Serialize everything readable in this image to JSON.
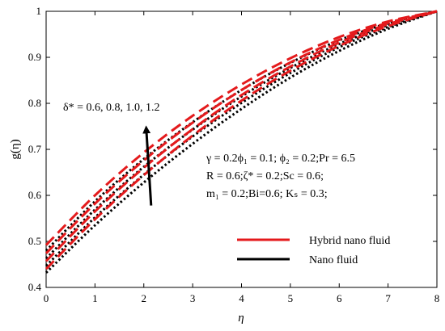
{
  "chart_data": {
    "type": "line",
    "xlabel": "η",
    "ylabel": "g(η)",
    "xlim": [
      0,
      8
    ],
    "ylim": [
      0.4,
      1.0
    ],
    "xticks": [
      "0",
      "1",
      "2",
      "3",
      "4",
      "5",
      "6",
      "7",
      "8"
    ],
    "yticks": [
      "0.4",
      "0.5",
      "0.6",
      "0.7",
      "0.8",
      "0.9",
      "1"
    ],
    "grid": false,
    "legend_position": "bottom-center",
    "legend": [
      {
        "label": "Hybrid nano fluid",
        "color": "#e41a1c",
        "style": "dashed"
      },
      {
        "label": "Nano fluid",
        "color": "#000000",
        "style": "dotted"
      }
    ],
    "annotation_delta": "δ* = 0.6, 0.8, 1.0, 1.2",
    "params_line1": "γ = 0.2ϕ₁ = 0.1; ϕ₂ = 0.2;Pr = 6.5",
    "params_line2": "R = 0.6;ζ* = 0.2;Sc = 0.6;",
    "params_line3": "m₁ = 0.2;Bi=0.6; Kₛ = 0.3;",
    "x": [
      0,
      1,
      2,
      3,
      4,
      5,
      6,
      7,
      8
    ],
    "series": [
      {
        "group": "hybrid",
        "color": "#e41a1c",
        "values": [
          0.44,
          0.548,
          0.644,
          0.73,
          0.806,
          0.871,
          0.925,
          0.968,
          1.0
        ]
      },
      {
        "group": "hybrid",
        "color": "#e41a1c",
        "values": [
          0.457,
          0.565,
          0.66,
          0.744,
          0.818,
          0.88,
          0.932,
          0.972,
          1.0
        ]
      },
      {
        "group": "hybrid",
        "color": "#e41a1c",
        "values": [
          0.474,
          0.582,
          0.676,
          0.758,
          0.829,
          0.889,
          0.938,
          0.975,
          1.0
        ]
      },
      {
        "group": "hybrid",
        "color": "#e41a1c",
        "values": [
          0.492,
          0.6,
          0.693,
          0.773,
          0.841,
          0.898,
          0.944,
          0.978,
          1.0
        ]
      },
      {
        "group": "nano",
        "color": "#000000",
        "values": [
          0.432,
          0.535,
          0.628,
          0.712,
          0.788,
          0.856,
          0.914,
          0.962,
          1.0
        ]
      },
      {
        "group": "nano",
        "color": "#000000",
        "values": [
          0.447,
          0.552,
          0.645,
          0.728,
          0.801,
          0.866,
          0.922,
          0.966,
          1.0
        ]
      },
      {
        "group": "nano",
        "color": "#000000",
        "values": [
          0.463,
          0.569,
          0.662,
          0.743,
          0.815,
          0.877,
          0.929,
          0.97,
          1.0
        ]
      },
      {
        "group": "nano",
        "color": "#000000",
        "values": [
          0.48,
          0.587,
          0.679,
          0.759,
          0.829,
          0.888,
          0.937,
          0.974,
          1.0
        ]
      }
    ],
    "arrow": {
      "x_from": 2.15,
      "y_from": 0.578,
      "x_to": 2.05,
      "y_to": 0.745
    }
  }
}
